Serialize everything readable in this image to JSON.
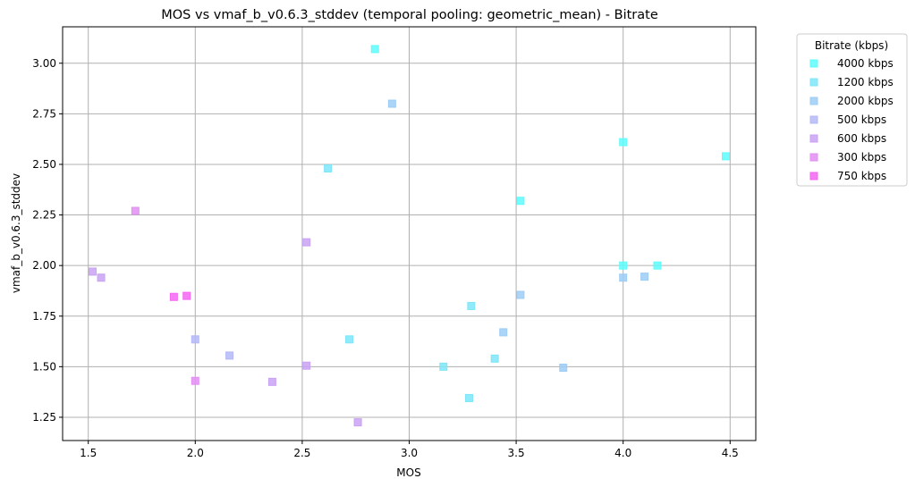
{
  "chart_data": {
    "type": "scatter",
    "title": "MOS vs vmaf_b_v0.6.3_stddev (temporal pooling: geometric_mean) - Bitrate",
    "xlabel": "MOS",
    "ylabel": "vmaf_b_v0.6.3_stddev",
    "xlim": [
      1.38,
      4.62
    ],
    "ylim": [
      1.135,
      3.18
    ],
    "xticks": [
      1.5,
      2.0,
      2.5,
      3.0,
      3.5,
      4.0,
      4.5
    ],
    "xtick_labels": [
      "1.5",
      "2.0",
      "2.5",
      "3.0",
      "3.5",
      "4.0",
      "4.5"
    ],
    "yticks": [
      1.25,
      1.5,
      1.75,
      2.0,
      2.25,
      2.5,
      2.75,
      3.0
    ],
    "ytick_labels": [
      "1.25",
      "1.50",
      "1.75",
      "2.00",
      "2.25",
      "2.50",
      "2.75",
      "3.00"
    ],
    "grid": true,
    "marker": "square",
    "legend": {
      "title": "Bitrate (kbps)",
      "placement": "outside-top-right"
    },
    "series": [
      {
        "name": "4000 kbps",
        "color": "#5efcfc",
        "points": [
          [
            2.84,
            3.07
          ],
          [
            4.0,
            2.61
          ],
          [
            4.48,
            2.54
          ],
          [
            3.52,
            2.32
          ],
          [
            4.0,
            2.0
          ],
          [
            4.16,
            2.0
          ]
        ]
      },
      {
        "name": "1200 kbps",
        "color": "#7de6f8",
        "points": [
          [
            2.62,
            2.48
          ],
          [
            3.29,
            1.8
          ],
          [
            2.72,
            1.635
          ],
          [
            3.16,
            1.5
          ],
          [
            3.4,
            1.54
          ],
          [
            3.28,
            1.345
          ]
        ]
      },
      {
        "name": "2000 kbps",
        "color": "#9ccdf6",
        "points": [
          [
            2.92,
            2.8
          ],
          [
            3.52,
            1.855
          ],
          [
            3.44,
            1.67
          ],
          [
            3.72,
            1.495
          ],
          [
            4.0,
            1.94
          ],
          [
            4.1,
            1.945
          ]
        ]
      },
      {
        "name": "500 kbps",
        "color": "#b4b9f6",
        "points": [
          [
            2.0,
            1.635
          ],
          [
            2.16,
            1.555
          ]
        ]
      },
      {
        "name": "600 kbps",
        "color": "#c9a2f4",
        "points": [
          [
            1.52,
            1.97
          ],
          [
            1.56,
            1.94
          ],
          [
            2.52,
            2.115
          ],
          [
            2.52,
            1.505
          ],
          [
            2.36,
            1.425
          ],
          [
            2.76,
            1.225
          ]
        ]
      },
      {
        "name": "300 kbps",
        "color": "#e38ef3",
        "points": [
          [
            1.72,
            2.27
          ],
          [
            2.0,
            1.43
          ]
        ]
      },
      {
        "name": "750 kbps",
        "color": "#f567f3",
        "points": [
          [
            1.9,
            1.845
          ],
          [
            1.96,
            1.85
          ]
        ]
      }
    ]
  }
}
